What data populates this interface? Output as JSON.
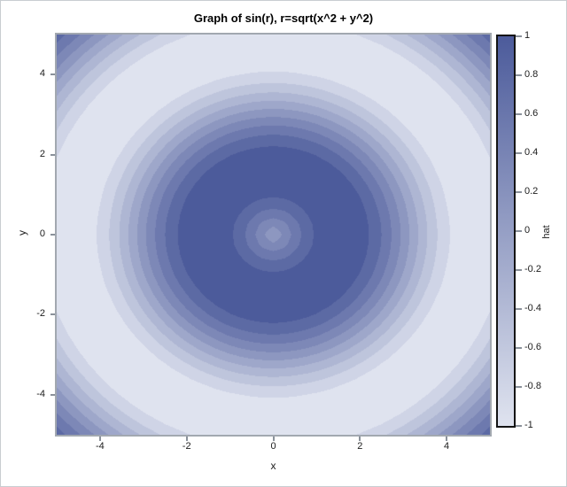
{
  "window": {
    "background_color": "#ffffff",
    "border_color": "#c9cdd1"
  },
  "chart_data": {
    "type": "heatmap",
    "subtype": "filled-contour",
    "title": "Graph of sin(r), r=sqrt(x^2 + y^2)",
    "xlabel": "x",
    "ylabel": "y",
    "zlabel": "hat",
    "z_expression": "hat = sin(r), r = sqrt(x^2 + y^2)",
    "x_range": [
      -5,
      5
    ],
    "y_range": [
      -5,
      5
    ],
    "z_range": [
      -1,
      1
    ],
    "x_ticks": [
      "-4",
      "-2",
      "0",
      "2",
      "4"
    ],
    "y_ticks": [
      "4",
      "2",
      "0",
      "-2",
      "-4"
    ],
    "colorbar_ticks": [
      "1",
      "0.8",
      "0.6",
      "0.4",
      "0.2",
      "0",
      "-0.2",
      "-0.4",
      "-0.6",
      "-0.8",
      "-1"
    ],
    "grid_step": 0.25,
    "contour_levels": 10,
    "level_step": 0.2,
    "color_low": "#dfe3ef",
    "color_high": "#4c5b9b",
    "frame_color": "#a2a8b0",
    "tick_color": "#8a919a",
    "colorbar_border_color": "#141414",
    "legend_position": "right",
    "grid": false
  }
}
